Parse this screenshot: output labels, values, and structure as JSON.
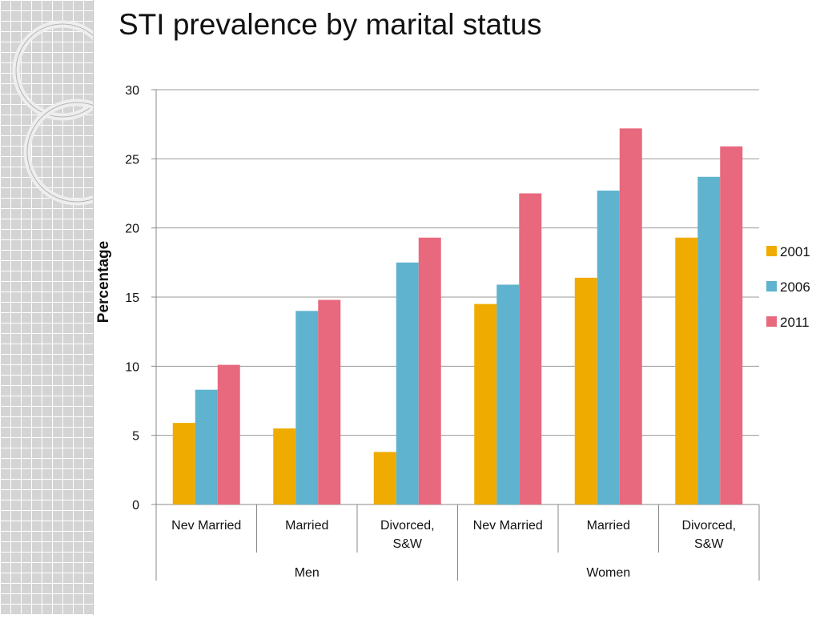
{
  "title": "STI prevalence by marital status",
  "chart_data": {
    "type": "bar",
    "title": "STI prevalence by marital status",
    "ylabel": "Percentage",
    "xlabel": "",
    "ylim": [
      0,
      30
    ],
    "yticks": [
      0,
      5,
      10,
      15,
      20,
      25,
      30
    ],
    "grid": true,
    "legend_position": "right",
    "categories": [
      "Nev Married",
      "Married",
      "Divorced, S&W",
      "Nev Married",
      "Married",
      "Divorced, S&W"
    ],
    "category_lines": [
      [
        "Nev Married"
      ],
      [
        "Married"
      ],
      [
        "Divorced,",
        "S&W"
      ],
      [
        "Nev Married"
      ],
      [
        "Married"
      ],
      [
        "Divorced,",
        "S&W"
      ]
    ],
    "groups": [
      {
        "label": "Men",
        "categories": [
          0,
          1,
          2
        ]
      },
      {
        "label": "Women",
        "categories": [
          3,
          4,
          5
        ]
      }
    ],
    "series": [
      {
        "name": "2001",
        "color": "#f0ab00",
        "values": [
          5.9,
          5.5,
          3.8,
          14.5,
          16.4,
          19.3
        ]
      },
      {
        "name": "2006",
        "color": "#5fb3ce",
        "values": [
          8.3,
          14.0,
          17.5,
          15.9,
          22.7,
          23.7
        ]
      },
      {
        "name": "2011",
        "color": "#e8687e",
        "values": [
          10.1,
          14.8,
          19.3,
          22.5,
          27.2,
          25.9
        ]
      }
    ]
  }
}
